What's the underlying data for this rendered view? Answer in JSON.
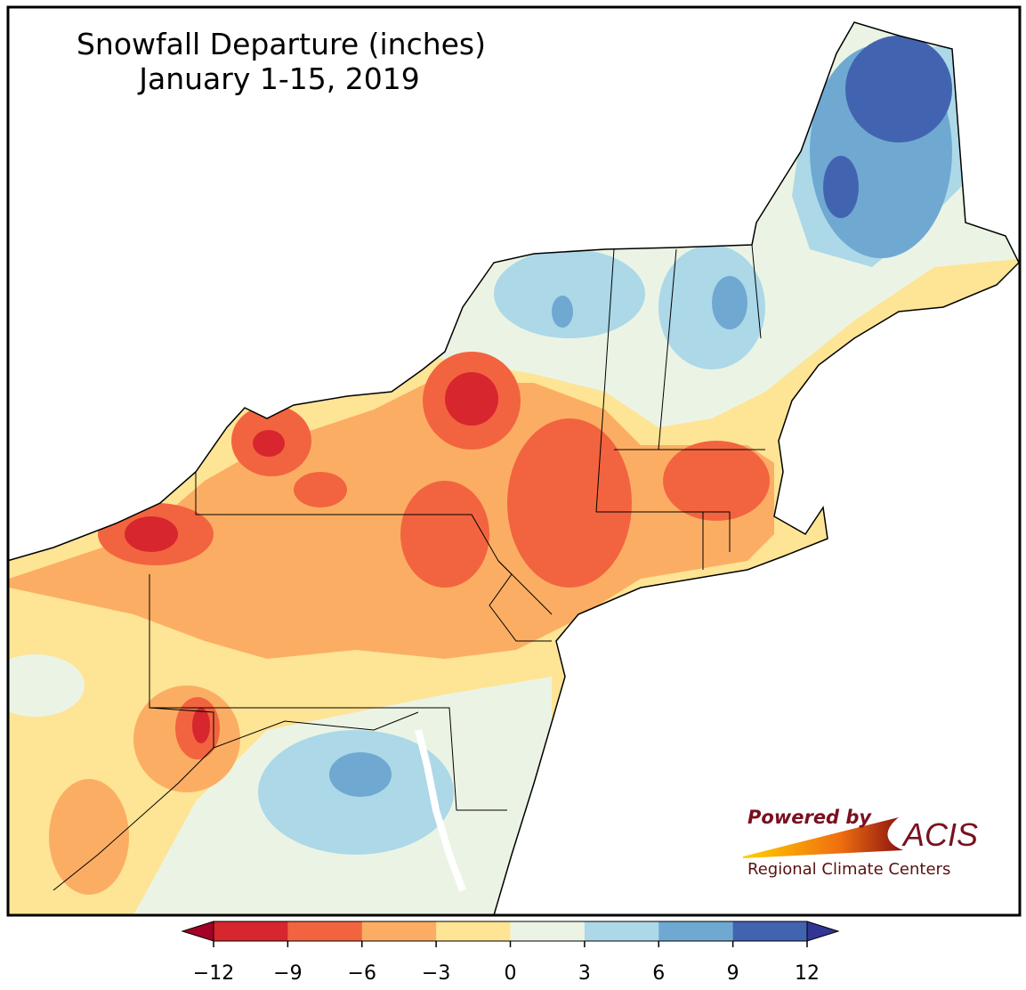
{
  "map": {
    "title": "Snowfall Departure (inches)",
    "subtitle": "January 1-15, 2019",
    "colorbar": {
      "ticks": [
        {
          "value": -12,
          "label": "−12"
        },
        {
          "value": -9,
          "label": "−9"
        },
        {
          "value": -6,
          "label": "−6"
        },
        {
          "value": -3,
          "label": "−3"
        },
        0,
        3,
        6,
        9,
        12
      ],
      "colors": [
        "#d7262e",
        "#f2643f",
        "#fbae63",
        "#fee495",
        "#ebf4e4",
        "#acd8e8",
        "#6fa9d2",
        "#4264b0"
      ],
      "extend_colors": [
        "#a50026",
        "#313695"
      ]
    },
    "logo": {
      "tagline": "Powered by",
      "name": "ACIS",
      "org": "Regional Climate Centers"
    }
  }
}
